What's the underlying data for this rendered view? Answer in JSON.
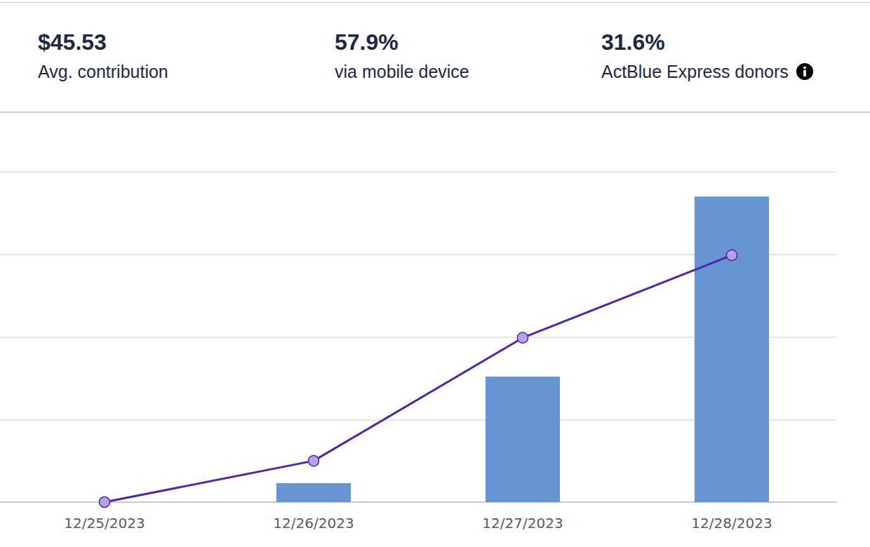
{
  "stats": [
    {
      "value": "$45.53",
      "label": "Avg. contribution"
    },
    {
      "value": "57.9%",
      "label": "via mobile device"
    },
    {
      "value": "31.6%",
      "label": "ActBlue Express donors"
    }
  ],
  "chart_data": {
    "type": "bar",
    "categories": [
      "12/25/2023",
      "12/26/2023",
      "12/27/2023",
      "12/28/2023"
    ],
    "series": [
      {
        "type": "bar",
        "color": "#6795d3",
        "values": [
          0,
          0.23,
          1.52,
          3.7
        ]
      },
      {
        "type": "line",
        "color": "#5227a6",
        "marker": "circle",
        "values": [
          0,
          0.5,
          1.99,
          2.99
        ]
      }
    ],
    "ylim": [
      0,
      4
    ],
    "yticks": [
      0,
      1,
      2,
      3,
      4
    ],
    "grid": true,
    "tick_labels": "x"
  }
}
